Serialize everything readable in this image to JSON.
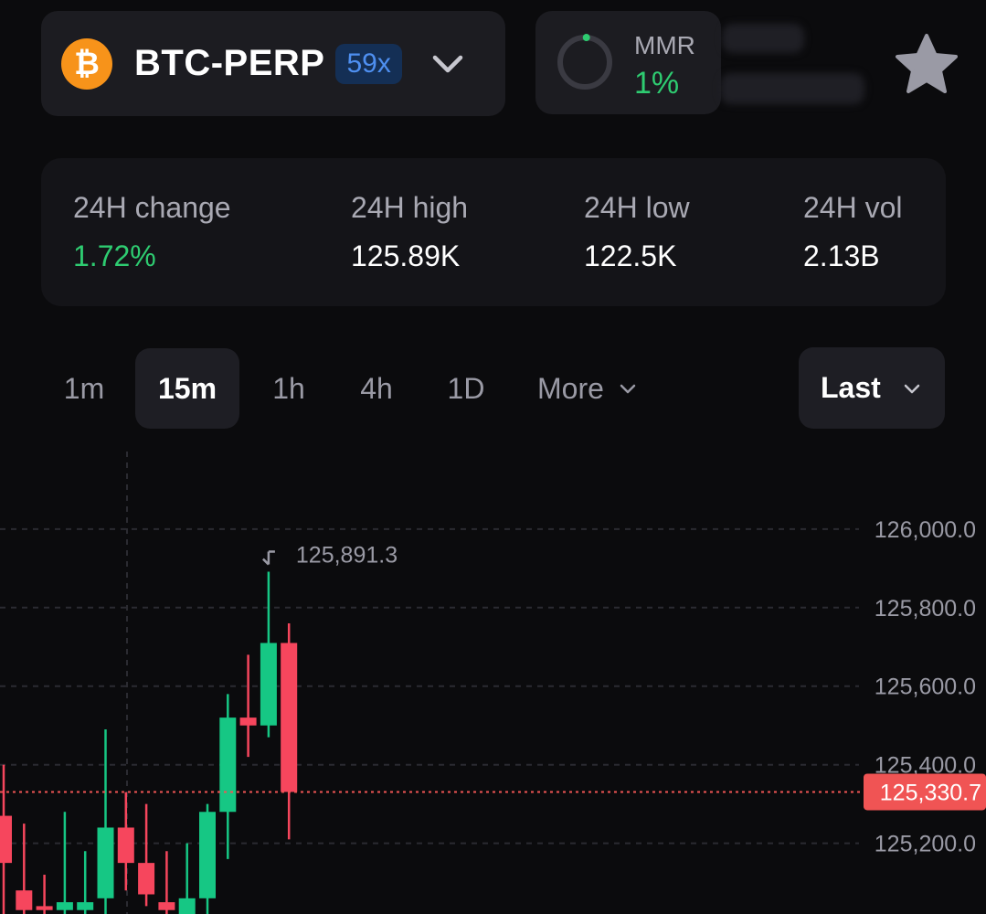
{
  "market": {
    "symbol": "BTC-PERP",
    "coin_glyph": "₿",
    "leverage": "59x",
    "icon": "chevron-down-icon"
  },
  "mmr": {
    "label": "MMR",
    "value": "1%",
    "ratio": 0.01
  },
  "stats": [
    {
      "label": "24H change",
      "value": "1.72%"
    },
    {
      "label": "24H high",
      "value": "125.89K"
    },
    {
      "label": "24H low",
      "value": "122.5K"
    },
    {
      "label": "24H vol",
      "value": "2.13B"
    }
  ],
  "timeframes": [
    {
      "label": "1m"
    },
    {
      "label": "15m",
      "active": true
    },
    {
      "label": "1h"
    },
    {
      "label": "4h"
    },
    {
      "label": "1D"
    },
    {
      "label": "More"
    }
  ],
  "price_type": {
    "label": "Last"
  },
  "colors": {
    "up": "#2ecc71",
    "down": "#f05454",
    "bull_candle": "#16c784",
    "bear_candle": "#f6465d",
    "accent_blue": "#4e8ff0",
    "btc_orange": "#f7931a"
  },
  "chart_data": {
    "type": "candlestick",
    "y_ticks": [
      "126,000.0",
      "125,800.0",
      "125,600.0",
      "125,400.0",
      "125,200.0"
    ],
    "ylim": [
      125020,
      126230
    ],
    "current_price": {
      "value": 125330.7,
      "label": "125,330.7"
    },
    "high_marker": {
      "value": 125891.3,
      "label": "125,891.3"
    },
    "candles": [
      {
        "o": 125270,
        "h": 125400,
        "l": 125020,
        "c": 125150
      },
      {
        "o": 125080,
        "h": 125250,
        "l": 125020,
        "c": 125030
      },
      {
        "o": 125040,
        "h": 125120,
        "l": 125020,
        "c": 125030
      },
      {
        "o": 125030,
        "h": 125280,
        "l": 125020,
        "c": 125050
      },
      {
        "o": 125030,
        "h": 125180,
        "l": 125020,
        "c": 125050
      },
      {
        "o": 125060,
        "h": 125490,
        "l": 125020,
        "c": 125240
      },
      {
        "o": 125240,
        "h": 125330,
        "l": 125080,
        "c": 125150
      },
      {
        "o": 125150,
        "h": 125300,
        "l": 125040,
        "c": 125070
      },
      {
        "o": 125050,
        "h": 125180,
        "l": 125020,
        "c": 125030
      },
      {
        "o": 125020,
        "h": 125200,
        "l": 125020,
        "c": 125060
      },
      {
        "o": 125060,
        "h": 125300,
        "l": 125020,
        "c": 125280
      },
      {
        "o": 125280,
        "h": 125580,
        "l": 125160,
        "c": 125520
      },
      {
        "o": 125520,
        "h": 125680,
        "l": 125420,
        "c": 125500
      },
      {
        "o": 125500,
        "h": 125891.3,
        "l": 125470,
        "c": 125710
      },
      {
        "o": 125710,
        "h": 125760,
        "l": 125210,
        "c": 125330.7
      }
    ]
  }
}
